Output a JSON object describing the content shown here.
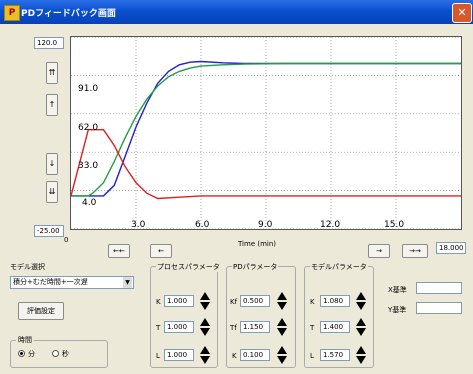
{
  "window": {
    "title": "PDフィードバック画面",
    "icon": "app-icon",
    "close_label": "✕",
    "close_color": "#d8582c",
    "titlebar_color": "#0a4fd0"
  },
  "plot": {
    "y_max_value": "120.0",
    "y_min_value": "-25.00",
    "x_min_label": "0",
    "x_max_value": "18.000",
    "x_axis_label": "Time (min)",
    "x_ticks": [
      "3.0",
      "6.0",
      "9.0",
      "12.0",
      "15.0"
    ],
    "y_markers": [
      "91.0",
      "62.0",
      "33.0",
      "4.0"
    ],
    "background": "#ffffff"
  },
  "chart_data": {
    "type": "line",
    "xlabel": "Time (min)",
    "xlim": [
      0,
      18
    ],
    "ylim": [
      -25,
      120
    ],
    "grid": true,
    "series": [
      {
        "color": "#2020d0",
        "x": [
          0,
          0.8,
          1.5,
          2.0,
          2.5,
          3.0,
          3.5,
          4.0,
          4.5,
          5.0,
          5.5,
          6.0,
          7.0,
          8.0,
          10.0,
          12.0,
          15.0,
          18.0
        ],
        "y": [
          0,
          0,
          0,
          8,
          30,
          52,
          70,
          85,
          94,
          99,
          101,
          101.5,
          100.5,
          100,
          100,
          100,
          100,
          100
        ]
      },
      {
        "color": "#20a040",
        "x": [
          0,
          0.8,
          1.0,
          1.5,
          2.0,
          2.5,
          3.0,
          3.5,
          4.0,
          4.5,
          5.0,
          5.5,
          6.0,
          7.0,
          8.0,
          10.0,
          12.0,
          15.0,
          18.0
        ],
        "y": [
          0,
          0,
          2,
          10,
          26,
          44,
          60,
          73,
          83,
          90,
          94,
          96.5,
          98,
          99,
          99.5,
          100,
          100,
          100,
          100
        ]
      },
      {
        "color": "#e02020",
        "x": [
          0,
          0.8,
          1.5,
          2.0,
          2.5,
          3.0,
          3.5,
          4.0,
          5.0,
          6.0,
          7.0,
          8.0,
          10.0,
          12.0,
          15.0,
          18.0
        ],
        "y": [
          0,
          50,
          50,
          38,
          22,
          10,
          2,
          -2,
          -1,
          0,
          0,
          0,
          0,
          0,
          0,
          0
        ]
      }
    ]
  },
  "controls": {
    "nav_left_fast": "←←",
    "nav_left": "←",
    "nav_right": "→",
    "nav_right_fast": "→→",
    "up_fast": "⇈",
    "up": "↑",
    "down": "↓",
    "down_fast": "⇊",
    "model_select_label": "モデル選択",
    "model_select_value": "積分+むだ時間+一次遅",
    "eval_button": "評価設定",
    "time_group_label": "時間",
    "time_min_label": "分",
    "time_sec_label": "秒"
  },
  "process_params": {
    "title": "プロセスパラメータ",
    "K_label": "K",
    "K_value": "1.000",
    "T_label": "T",
    "T_value": "1.000",
    "L_label": "L",
    "L_value": "1.000"
  },
  "pd_params": {
    "title": "PDパラメータ",
    "Kf_label": "Kf",
    "Kf_value": "0.500",
    "Tf_label": "Tf",
    "Tf_value": "1.150",
    "K_label": "K",
    "K_value": "0.100"
  },
  "model_params": {
    "title": "モデルパラメータ",
    "K_label": "K",
    "K_value": "1.080",
    "T_label": "T",
    "T_value": "1.400",
    "L_label": "L",
    "L_value": "1.570"
  },
  "criteria": {
    "x_label": "X基準",
    "x_value": "",
    "y_label": "Y基準",
    "y_value": ""
  }
}
